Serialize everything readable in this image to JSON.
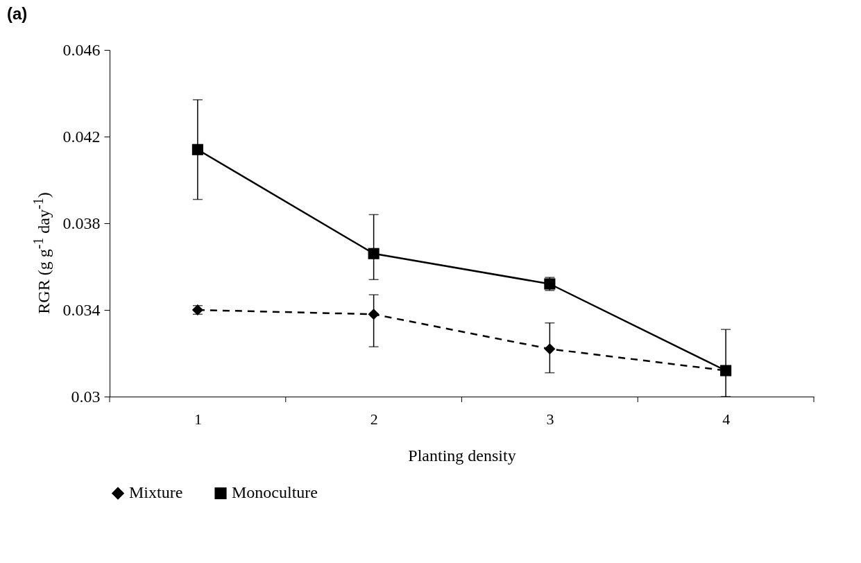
{
  "chart_data": {
    "type": "line",
    "title": "(a)",
    "xlabel": "Planting density",
    "ylabel": "RGR (g g$^{-1}$ day$^{-1}$)",
    "categories": [
      "1",
      "2",
      "3",
      "4"
    ],
    "series": [
      {
        "name": "Mixture",
        "color": "#000000",
        "line_style": "dashed",
        "marker": "diamond",
        "values": [
          0.034,
          0.0338,
          0.0322,
          0.0312
        ],
        "errors": [
          [
            0.0338,
            0.0342
          ],
          [
            0.0323,
            0.0347
          ],
          [
            0.0311,
            0.0334
          ],
          null
        ]
      },
      {
        "name": "Monoculture",
        "color": "#000000",
        "line_style": "solid",
        "marker": "square",
        "values": [
          0.0414,
          0.0366,
          0.0352,
          0.0312
        ],
        "errors": [
          [
            0.0391,
            0.0437
          ],
          [
            0.0354,
            0.0384
          ],
          [
            0.0349,
            0.0355
          ],
          [
            0.03,
            0.0331
          ]
        ]
      }
    ],
    "ylim": [
      0.03,
      0.046
    ],
    "yticks": [
      0.03,
      0.034,
      0.038,
      0.042,
      0.046
    ],
    "grid": false,
    "legend": "bottom"
  }
}
